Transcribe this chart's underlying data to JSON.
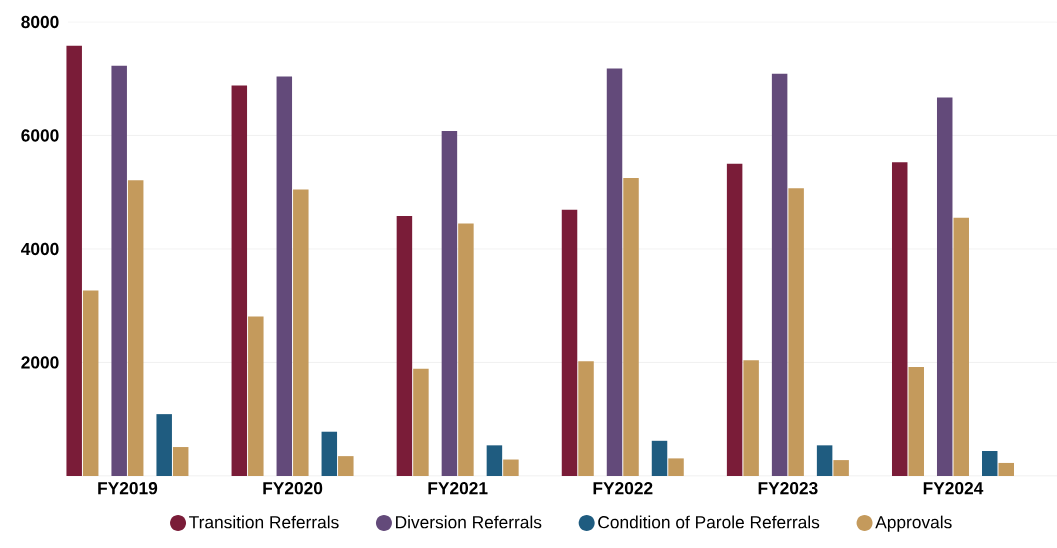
{
  "chart_data": {
    "type": "bar",
    "categories": [
      "FY2019",
      "FY2020",
      "FY2021",
      "FY2022",
      "FY2023",
      "FY2024"
    ],
    "series": [
      {
        "name": "Transition Referrals",
        "color": "#7a1c38",
        "values": [
          7580,
          6880,
          4580,
          4690,
          5500,
          5530
        ]
      },
      {
        "color": "#c49a5c",
        "values": [
          3270,
          2810,
          1890,
          2020,
          2040,
          1920
        ]
      },
      {
        "name": "Diversion Referrals",
        "color": "#634a7a",
        "values": [
          7230,
          7040,
          6080,
          7180,
          7090,
          6670
        ]
      },
      {
        "color": "#c49a5c",
        "values": [
          5210,
          5050,
          4450,
          5250,
          5070,
          4550
        ]
      },
      {
        "name": "Condition of Parole Referrals",
        "color": "#1f5c80",
        "values": [
          1090,
          780,
          540,
          620,
          540,
          440
        ]
      },
      {
        "name": "Approvals",
        "color": "#c49a5c",
        "values": [
          510,
          350,
          290,
          310,
          280,
          230
        ]
      }
    ],
    "ylim": [
      0,
      8000
    ],
    "yticks": [
      2000,
      4000,
      6000,
      8000
    ],
    "grid": "y",
    "legend": "bottom"
  }
}
